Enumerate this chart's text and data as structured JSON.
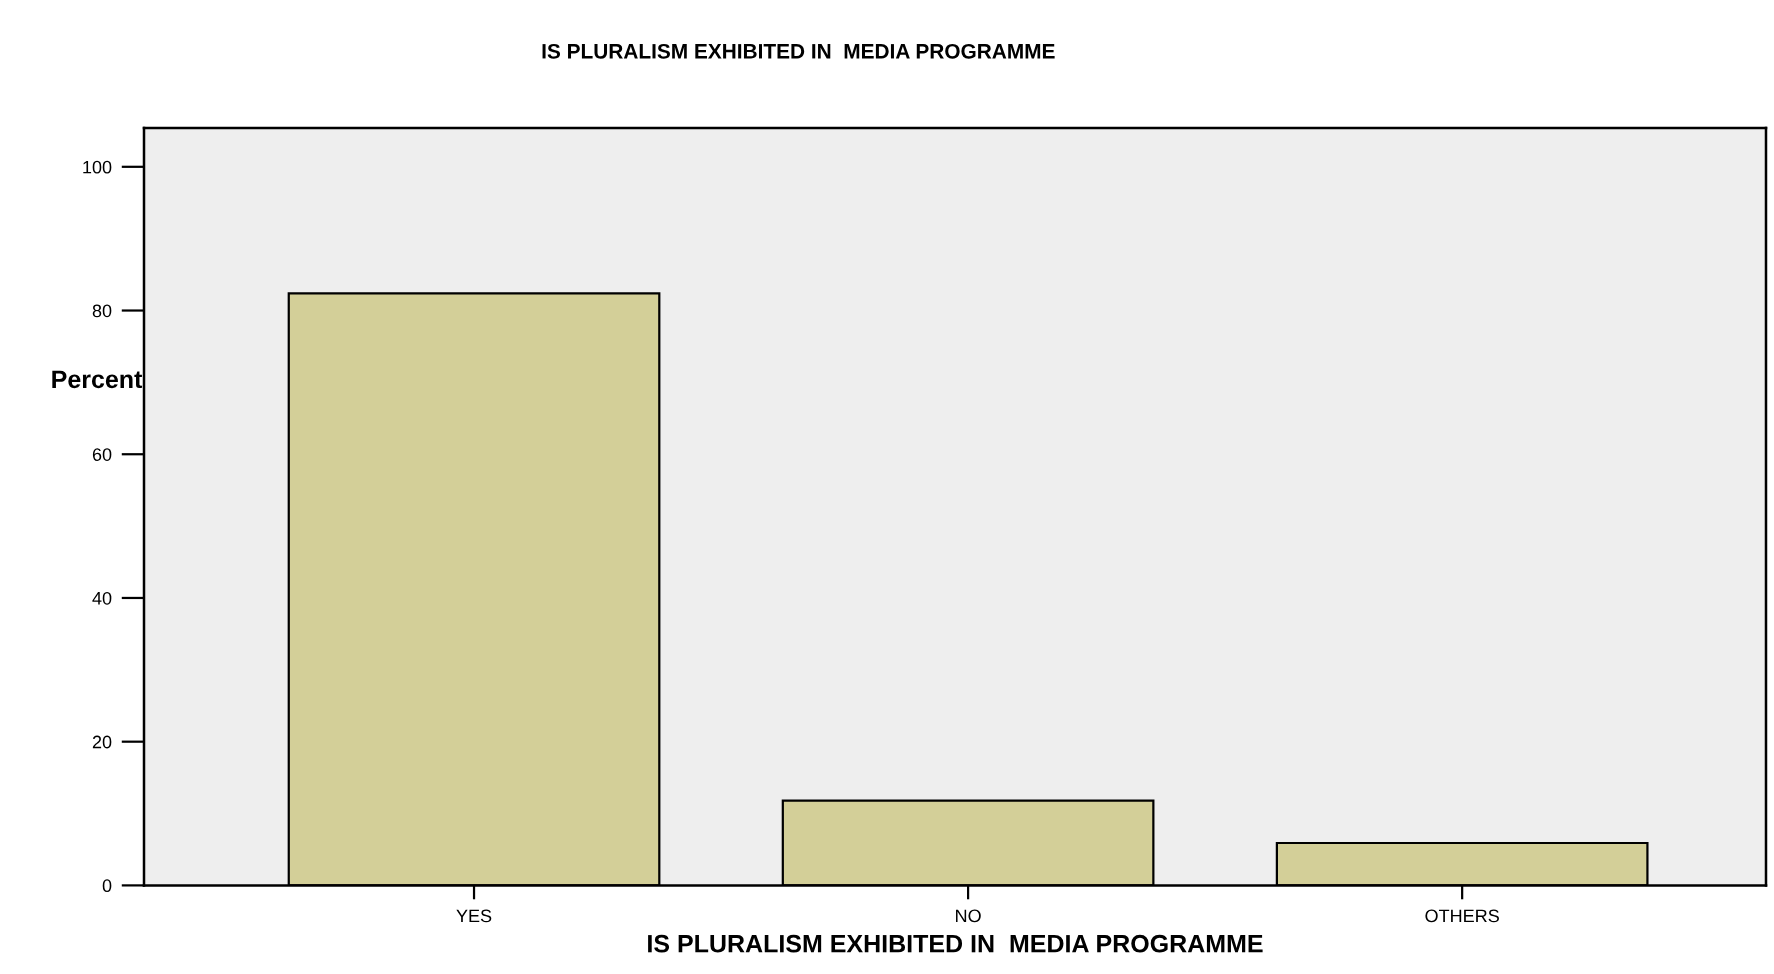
{
  "chart_data": {
    "type": "bar",
    "title": "IS PLURALISM EXHIBITED IN  MEDIA PROGRAMME",
    "xlabel": "IS PLURALISM EXHIBITED IN  MEDIA PROGRAMME",
    "ylabel": "Percent",
    "categories": [
      "YES",
      "NO",
      "OTHERS"
    ],
    "values": [
      82.4,
      11.8,
      5.9
    ],
    "color": "#d3cf98",
    "ylim": [
      0,
      105.4
    ],
    "yticks": [
      0,
      20,
      40,
      60,
      80,
      100
    ],
    "grid": false,
    "legend": false
  }
}
